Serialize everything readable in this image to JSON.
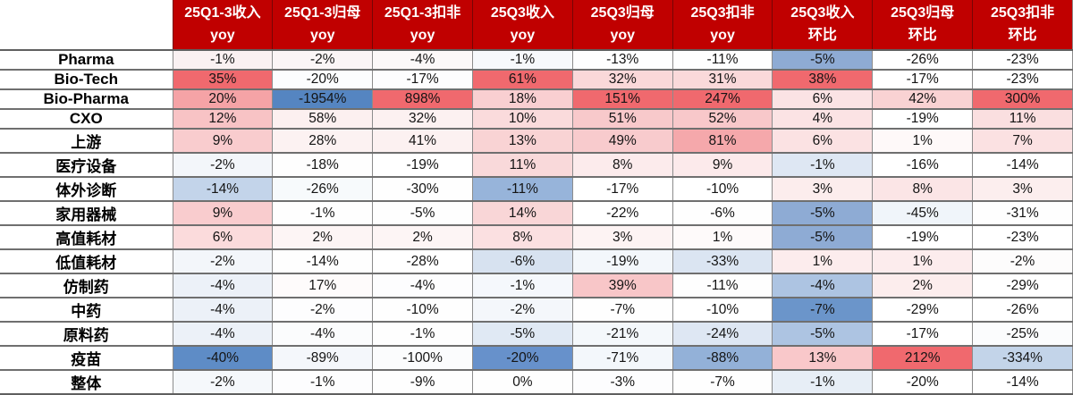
{
  "colors": {
    "header_bg": "#C00000",
    "header_text": "#FFFFFF",
    "positive_extreme": "#F0696E",
    "negative_extreme": "#5585C1",
    "neutral": "#FFFFFF",
    "grid_horizontal": "#6F6F6F",
    "grid_vertical": "#8C8C8C"
  },
  "header": {
    "corner": "",
    "columns": [
      {
        "line1": "25Q1-3收入",
        "line2": "yoy"
      },
      {
        "line1": "25Q1-3归母",
        "line2": "yoy"
      },
      {
        "line1": "25Q1-3扣非",
        "line2": "yoy"
      },
      {
        "line1": "25Q3收入",
        "line2": "yoy"
      },
      {
        "line1": "25Q3归母",
        "line2": "yoy"
      },
      {
        "line1": "25Q3扣非",
        "line2": "yoy"
      },
      {
        "line1": "25Q3收入",
        "line2": "环比"
      },
      {
        "line1": "25Q3归母",
        "line2": "环比"
      },
      {
        "line1": "25Q3扣非",
        "line2": "环比"
      }
    ]
  },
  "rows": [
    {
      "label": "Pharma",
      "cells": [
        {
          "v": "-1%",
          "bg": "#FAF1F2"
        },
        {
          "v": "-2%",
          "bg": "#FBF5F6"
        },
        {
          "v": "-4%",
          "bg": "#FCF8F8"
        },
        {
          "v": "-1%",
          "bg": "#F7F9FC"
        },
        {
          "v": "-13%",
          "bg": "#FEFEFE"
        },
        {
          "v": "-11%",
          "bg": "#FEFEFE"
        },
        {
          "v": "-5%",
          "bg": "#8EABD4"
        },
        {
          "v": "-26%",
          "bg": "#FFFFFF"
        },
        {
          "v": "-23%",
          "bg": "#FFFFFF"
        }
      ]
    },
    {
      "label": "Bio-Tech",
      "cells": [
        {
          "v": "35%",
          "bg": "#F0696E"
        },
        {
          "v": "-20%",
          "bg": "#FCFDFE"
        },
        {
          "v": "-17%",
          "bg": "#FDFDFE"
        },
        {
          "v": "61%",
          "bg": "#F0696E"
        },
        {
          "v": "32%",
          "bg": "#FAD8D9"
        },
        {
          "v": "31%",
          "bg": "#FAD9DA"
        },
        {
          "v": "38%",
          "bg": "#F0696E"
        },
        {
          "v": "-17%",
          "bg": "#FFFFFF"
        },
        {
          "v": "-23%",
          "bg": "#FFFFFF"
        }
      ]
    },
    {
      "label": "Bio-Pharma",
      "cells": [
        {
          "v": "20%",
          "bg": "#F5A3A6"
        },
        {
          "v": "-1954%",
          "bg": "#5585C1"
        },
        {
          "v": "898%",
          "bg": "#F0696E"
        },
        {
          "v": "18%",
          "bg": "#F9CFD1"
        },
        {
          "v": "151%",
          "bg": "#F0696E"
        },
        {
          "v": "247%",
          "bg": "#F0696E"
        },
        {
          "v": "6%",
          "bg": "#FBE3E4"
        },
        {
          "v": "42%",
          "bg": "#F9D2D3"
        },
        {
          "v": "300%",
          "bg": "#F0696E"
        }
      ]
    },
    {
      "label": "CXO",
      "cells": [
        {
          "v": "12%",
          "bg": "#F8C3C5"
        },
        {
          "v": "58%",
          "bg": "#FCF0F0"
        },
        {
          "v": "32%",
          "bg": "#FCF1F1"
        },
        {
          "v": "10%",
          "bg": "#FADBDC"
        },
        {
          "v": "51%",
          "bg": "#F8C9CB"
        },
        {
          "v": "52%",
          "bg": "#F8C8CA"
        },
        {
          "v": "4%",
          "bg": "#FBE3E4"
        },
        {
          "v": "-19%",
          "bg": "#FFFFFF"
        },
        {
          "v": "11%",
          "bg": "#FADFE0"
        }
      ]
    },
    {
      "label": "上游",
      "cells": [
        {
          "v": "9%",
          "bg": "#F9CCCE"
        },
        {
          "v": "28%",
          "bg": "#FCF2F2"
        },
        {
          "v": "41%",
          "bg": "#FCF1F1"
        },
        {
          "v": "13%",
          "bg": "#F9D3D4"
        },
        {
          "v": "49%",
          "bg": "#F8CBCD"
        },
        {
          "v": "81%",
          "bg": "#F5A8AB"
        },
        {
          "v": "6%",
          "bg": "#FBE2E3"
        },
        {
          "v": "1%",
          "bg": "#FEF9F9"
        },
        {
          "v": "7%",
          "bg": "#FBE1E2"
        }
      ]
    },
    {
      "label": "医疗设备",
      "cells": [
        {
          "v": "-2%",
          "bg": "#F3F6FA"
        },
        {
          "v": "-18%",
          "bg": "#FEFEFE"
        },
        {
          "v": "-19%",
          "bg": "#FFFFFF"
        },
        {
          "v": "11%",
          "bg": "#F9D9DA"
        },
        {
          "v": "8%",
          "bg": "#FCEBEC"
        },
        {
          "v": "9%",
          "bg": "#FCEAEB"
        },
        {
          "v": "-1%",
          "bg": "#DEE7F3"
        },
        {
          "v": "-16%",
          "bg": "#FFFFFF"
        },
        {
          "v": "-14%",
          "bg": "#FFFFFF"
        }
      ]
    },
    {
      "label": "体外诊断",
      "cells": [
        {
          "v": "-14%",
          "bg": "#C3D4EA"
        },
        {
          "v": "-26%",
          "bg": "#F7FAFC"
        },
        {
          "v": "-30%",
          "bg": "#FEFEFE"
        },
        {
          "v": "-11%",
          "bg": "#97B4DA"
        },
        {
          "v": "-17%",
          "bg": "#FFFFFF"
        },
        {
          "v": "-10%",
          "bg": "#FFFFFF"
        },
        {
          "v": "3%",
          "bg": "#FCEDED"
        },
        {
          "v": "8%",
          "bg": "#FBE5E6"
        },
        {
          "v": "3%",
          "bg": "#FCEEEE"
        }
      ]
    },
    {
      "label": "家用器械",
      "cells": [
        {
          "v": "9%",
          "bg": "#F9CCCE"
        },
        {
          "v": "-1%",
          "bg": "#FEFEFE"
        },
        {
          "v": "-5%",
          "bg": "#FEFEFE"
        },
        {
          "v": "14%",
          "bg": "#F9D6D7"
        },
        {
          "v": "-22%",
          "bg": "#FFFFFF"
        },
        {
          "v": "-6%",
          "bg": "#FEFEFE"
        },
        {
          "v": "-5%",
          "bg": "#8EABD4"
        },
        {
          "v": "-45%",
          "bg": "#F0F5FA"
        },
        {
          "v": "-31%",
          "bg": "#FEFEFE"
        }
      ]
    },
    {
      "label": "高值耗材",
      "cells": [
        {
          "v": "6%",
          "bg": "#FBDBDC"
        },
        {
          "v": "2%",
          "bg": "#FDF5F5"
        },
        {
          "v": "2%",
          "bg": "#FDF5F5"
        },
        {
          "v": "8%",
          "bg": "#FBE0E1"
        },
        {
          "v": "3%",
          "bg": "#FDF3F3"
        },
        {
          "v": "1%",
          "bg": "#FEFAFA"
        },
        {
          "v": "-5%",
          "bg": "#8EABD4"
        },
        {
          "v": "-19%",
          "bg": "#FFFFFF"
        },
        {
          "v": "-23%",
          "bg": "#FFFFFF"
        }
      ]
    },
    {
      "label": "低值耗材",
      "cells": [
        {
          "v": "-2%",
          "bg": "#F3F6FA"
        },
        {
          "v": "-14%",
          "bg": "#FEFEFE"
        },
        {
          "v": "-28%",
          "bg": "#FFFFFF"
        },
        {
          "v": "-6%",
          "bg": "#D7E2F0"
        },
        {
          "v": "-19%",
          "bg": "#F3F7FB"
        },
        {
          "v": "-33%",
          "bg": "#DBE5F2"
        },
        {
          "v": "1%",
          "bg": "#FCECED"
        },
        {
          "v": "1%",
          "bg": "#FCECED"
        },
        {
          "v": "-2%",
          "bg": "#FDFCFC"
        }
      ]
    },
    {
      "label": "仿制药",
      "cells": [
        {
          "v": "-4%",
          "bg": "#ECF1F8"
        },
        {
          "v": "17%",
          "bg": "#FEFBFB"
        },
        {
          "v": "-4%",
          "bg": "#FDFDFE"
        },
        {
          "v": "-1%",
          "bg": "#F5F8FC"
        },
        {
          "v": "39%",
          "bg": "#F8C6C8"
        },
        {
          "v": "-11%",
          "bg": "#FEFEFE"
        },
        {
          "v": "-4%",
          "bg": "#ADC4E2"
        },
        {
          "v": "2%",
          "bg": "#FCEDED"
        },
        {
          "v": "-29%",
          "bg": "#FFFFFF"
        }
      ]
    },
    {
      "label": "中药",
      "cells": [
        {
          "v": "-4%",
          "bg": "#ECF1F8"
        },
        {
          "v": "-2%",
          "bg": "#FDFDFE"
        },
        {
          "v": "-10%",
          "bg": "#FEFEFE"
        },
        {
          "v": "-2%",
          "bg": "#F4F7FB"
        },
        {
          "v": "-7%",
          "bg": "#FEFEFE"
        },
        {
          "v": "-10%",
          "bg": "#FFFFFF"
        },
        {
          "v": "-7%",
          "bg": "#6B95CA"
        },
        {
          "v": "-29%",
          "bg": "#FFFFFF"
        },
        {
          "v": "-26%",
          "bg": "#FFFFFF"
        }
      ]
    },
    {
      "label": "原料药",
      "cells": [
        {
          "v": "-4%",
          "bg": "#ECF1F8"
        },
        {
          "v": "-4%",
          "bg": "#FBFCFD"
        },
        {
          "v": "-1%",
          "bg": "#FEFEFE"
        },
        {
          "v": "-5%",
          "bg": "#E0E9F4"
        },
        {
          "v": "-21%",
          "bg": "#F4F8FB"
        },
        {
          "v": "-24%",
          "bg": "#DEE7F3"
        },
        {
          "v": "-5%",
          "bg": "#ADC4E2"
        },
        {
          "v": "-17%",
          "bg": "#FFFFFF"
        },
        {
          "v": "-25%",
          "bg": "#FBFCFD"
        }
      ]
    },
    {
      "label": "疫苗",
      "cells": [
        {
          "v": "-40%",
          "bg": "#5E8CC6"
        },
        {
          "v": "-89%",
          "bg": "#F4F7FB"
        },
        {
          "v": "-100%",
          "bg": "#FBFCFD"
        },
        {
          "v": "-20%",
          "bg": "#6791CB"
        },
        {
          "v": "-71%",
          "bg": "#F3F7FB"
        },
        {
          "v": "-88%",
          "bg": "#93B1D8"
        },
        {
          "v": "13%",
          "bg": "#F9C8CA"
        },
        {
          "v": "212%",
          "bg": "#F0696E"
        },
        {
          "v": "-334%",
          "bg": "#C3D4E9"
        }
      ]
    },
    {
      "label": "整体",
      "cells": [
        {
          "v": "-2%",
          "bg": "#F5F8FB"
        },
        {
          "v": "-1%",
          "bg": "#FDFDFE"
        },
        {
          "v": "-9%",
          "bg": "#FEFEFE"
        },
        {
          "v": "0%",
          "bg": "#FEFEFE"
        },
        {
          "v": "-3%",
          "bg": "#FDFDFE"
        },
        {
          "v": "-7%",
          "bg": "#FEFEFE"
        },
        {
          "v": "-1%",
          "bg": "#E7EEF6"
        },
        {
          "v": "-20%",
          "bg": "#FFFFFF"
        },
        {
          "v": "-14%",
          "bg": "#FFFFFF"
        }
      ]
    }
  ],
  "chart_data": {
    "type": "heatmap",
    "columns": [
      "25Q1-3收入 yoy",
      "25Q1-3归母 yoy",
      "25Q1-3扣非 yoy",
      "25Q3收入 yoy",
      "25Q3归母 yoy",
      "25Q3扣非 yoy",
      "25Q3收入 环比",
      "25Q3归母 环比",
      "25Q3扣非 环比"
    ],
    "rows": [
      "Pharma",
      "Bio-Tech",
      "Bio-Pharma",
      "CXO",
      "上游",
      "医疗设备",
      "体外诊断",
      "家用器械",
      "高值耗材",
      "低值耗材",
      "仿制药",
      "中药",
      "原料药",
      "疫苗",
      "整体"
    ],
    "values_pct": [
      [
        -1,
        -2,
        -4,
        -1,
        -13,
        -11,
        -5,
        -26,
        -23
      ],
      [
        35,
        -20,
        -17,
        61,
        32,
        31,
        38,
        -17,
        -23
      ],
      [
        20,
        -1954,
        898,
        18,
        151,
        247,
        6,
        42,
        300
      ],
      [
        12,
        58,
        32,
        10,
        51,
        52,
        4,
        -19,
        11
      ],
      [
        9,
        28,
        41,
        13,
        49,
        81,
        6,
        1,
        7
      ],
      [
        -2,
        -18,
        -19,
        11,
        8,
        9,
        -1,
        -16,
        -14
      ],
      [
        -14,
        -26,
        -30,
        -11,
        -17,
        -10,
        3,
        8,
        3
      ],
      [
        9,
        -1,
        -5,
        14,
        -22,
        -6,
        -5,
        -45,
        -31
      ],
      [
        6,
        2,
        2,
        8,
        3,
        1,
        -5,
        -19,
        -23
      ],
      [
        -2,
        -14,
        -28,
        -6,
        -19,
        -33,
        1,
        1,
        -2
      ],
      [
        -4,
        17,
        -4,
        -1,
        39,
        -11,
        -4,
        2,
        -29
      ],
      [
        -4,
        -2,
        -10,
        -2,
        -7,
        -10,
        -7,
        -29,
        -26
      ],
      [
        -4,
        -4,
        -1,
        -5,
        -21,
        -24,
        -5,
        -17,
        -25
      ],
      [
        -40,
        -89,
        -100,
        -20,
        -71,
        -88,
        13,
        212,
        -334
      ],
      [
        -2,
        -1,
        -9,
        0,
        -3,
        -7,
        -1,
        -20,
        -14
      ]
    ],
    "color_scale": {
      "low": "#5585C1",
      "mid": "#FFFFFF",
      "high": "#F0696E"
    },
    "title": "",
    "legend": "none",
    "grid": true
  }
}
